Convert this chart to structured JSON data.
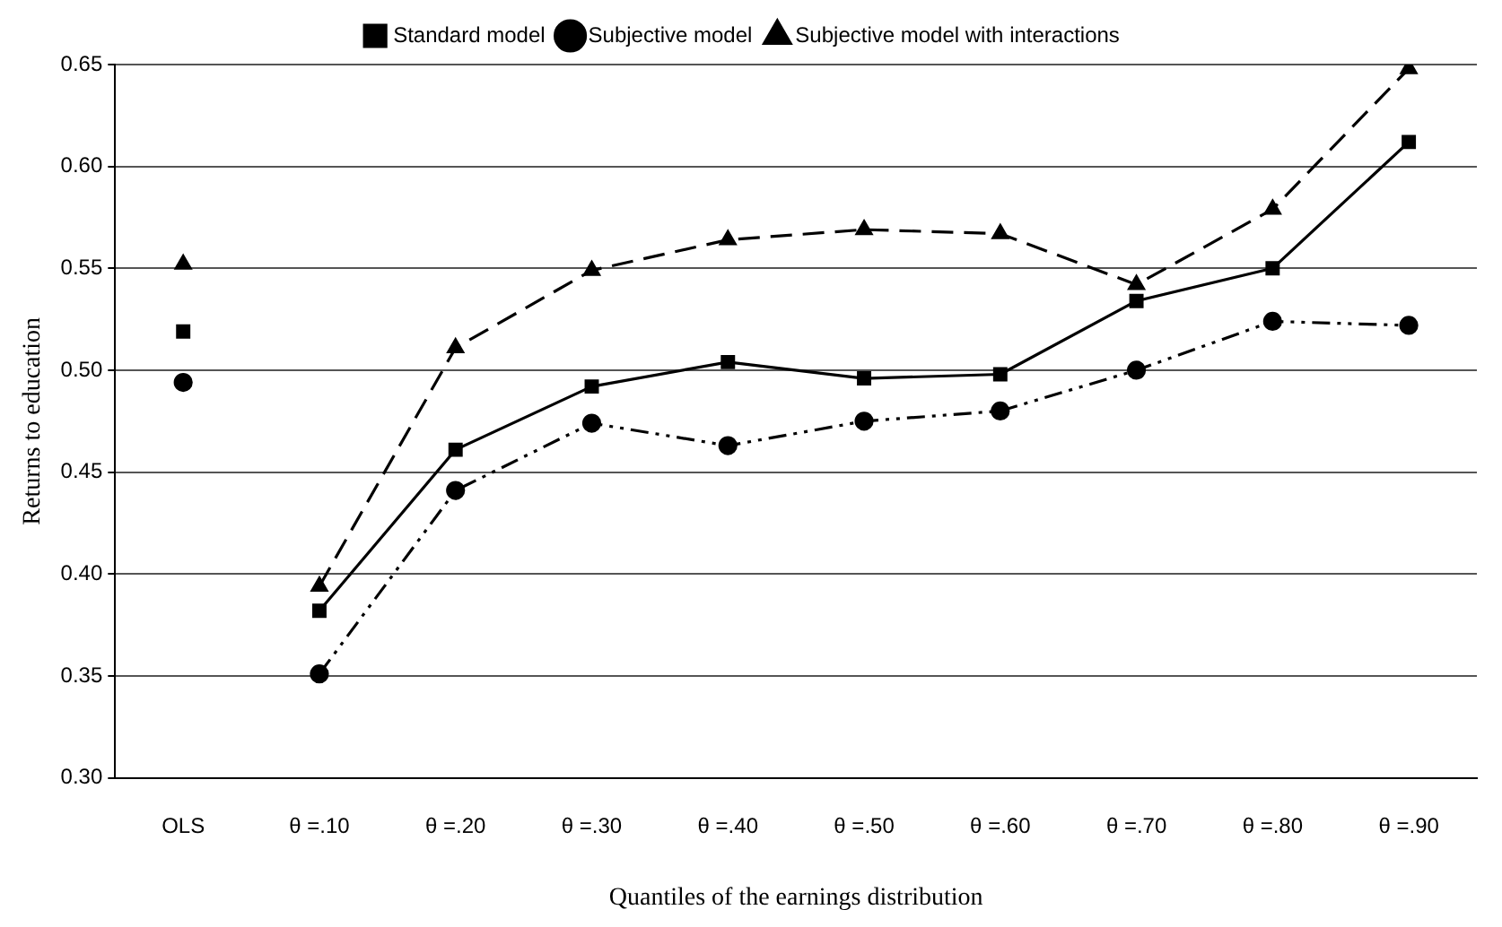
{
  "chart_data": {
    "type": "line",
    "xlabel": "Quantiles of the earnings distribution",
    "ylabel": "Returns to education",
    "categories": [
      "OLS",
      "θ =.10",
      "θ =.20",
      "θ =.30",
      "θ =.40",
      "θ =.50",
      "θ =.60",
      "θ =.70",
      "θ =.80",
      "θ =.90"
    ],
    "ylim": [
      0.3,
      0.65
    ],
    "yticks": [
      {
        "value": 0.3,
        "label": "0.30"
      },
      {
        "value": 0.35,
        "label": "0.35"
      },
      {
        "value": 0.4,
        "label": "0.40"
      },
      {
        "value": 0.45,
        "label": "0.45"
      },
      {
        "value": 0.5,
        "label": "0.50"
      },
      {
        "value": 0.55,
        "label": "0.55"
      },
      {
        "value": 0.6,
        "label": "0.60"
      },
      {
        "value": 0.65,
        "label": "0.65"
      }
    ],
    "grid": "y",
    "legend": "top",
    "series": [
      {
        "name": "Standard model",
        "color": "#000000",
        "marker": "square",
        "line_style": "solid",
        "x": [
          "θ =.10",
          "θ =.20",
          "θ =.30",
          "θ =.40",
          "θ =.50",
          "θ =.60",
          "θ =.70",
          "θ =.80",
          "θ =.90"
        ],
        "values": [
          0.382,
          0.461,
          0.492,
          0.504,
          0.496,
          0.498,
          0.534,
          0.55,
          0.612
        ]
      },
      {
        "name": "Subjective model",
        "color": "#000000",
        "marker": "circle",
        "line_style": "dashdotdot",
        "x": [
          "θ =.10",
          "θ =.20",
          "θ =.30",
          "θ =.40",
          "θ =.50",
          "θ =.60",
          "θ =.70",
          "θ =.80",
          "θ =.90"
        ],
        "values": [
          0.351,
          0.441,
          0.474,
          0.463,
          0.475,
          0.48,
          0.5,
          0.524,
          0.522
        ]
      },
      {
        "name": "Subjective model with interactions",
        "color": "#000000",
        "marker": "triangle",
        "line_style": "dashed",
        "x": [
          "θ =.10",
          "θ =.20",
          "θ =.30",
          "θ =.40",
          "θ =.50",
          "θ =.60",
          "θ =.70",
          "θ =.80",
          "θ =.90"
        ],
        "values": [
          0.394,
          0.511,
          0.549,
          0.564,
          0.569,
          0.567,
          0.542,
          0.579,
          0.648
        ]
      },
      {
        "type": "scatter",
        "color": "#000000",
        "marker": "square",
        "x": [
          "OLS"
        ],
        "values": [
          0.519
        ]
      },
      {
        "type": "scatter",
        "color": "#000000",
        "marker": "circle",
        "x": [
          "OLS"
        ],
        "values": [
          0.494
        ]
      },
      {
        "type": "scatter",
        "color": "#000000",
        "marker": "triangle",
        "x": [
          "OLS"
        ],
        "values": [
          0.552
        ]
      }
    ]
  }
}
